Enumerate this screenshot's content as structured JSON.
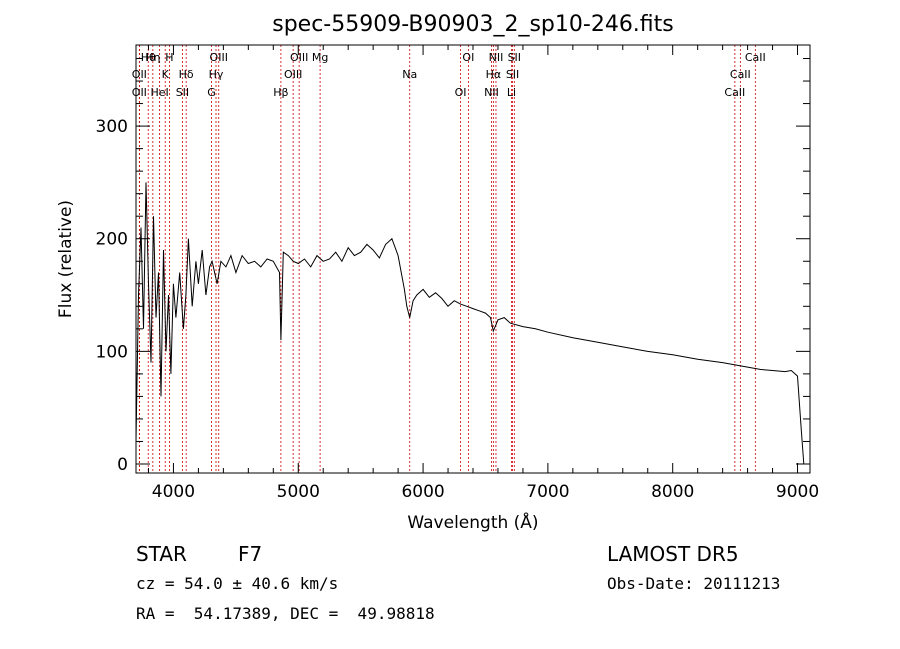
{
  "title": "spec-55909-B90903_2_sp10-246.fits",
  "info": {
    "class_label": "STAR",
    "subclass": "F7",
    "survey": "LAMOST DR5",
    "cz": "cz = 54.0 ± 40.6 km/s",
    "obs_date": "Obs-Date: 20111213",
    "radec": "RA =  54.17389, DEC =  49.98818"
  },
  "colors": {
    "spectrum": "#000000",
    "line_marker": "#cc0000",
    "frame": "#000000"
  },
  "chart_data": {
    "type": "line",
    "title": "spec-55909-B90903_2_sp10-246.fits",
    "xlabel": "Wavelength (Å)",
    "ylabel": "Flux (relative)",
    "xlim": [
      3700,
      9100
    ],
    "ylim": [
      -8,
      372
    ],
    "xticks": [
      4000,
      5000,
      6000,
      7000,
      8000,
      9000
    ],
    "yticks": [
      0,
      100,
      200,
      300
    ],
    "grid": false,
    "legend": "none",
    "series": [
      {
        "x": [
          3700,
          3720,
          3740,
          3760,
          3780,
          3800,
          3820,
          3840,
          3860,
          3880,
          3900,
          3920,
          3940,
          3960,
          3980,
          4000,
          4020,
          4050,
          4080,
          4100,
          4120,
          4150,
          4180,
          4200,
          4230,
          4260,
          4290,
          4310,
          4330,
          4350,
          4380,
          4420,
          4460,
          4500,
          4550,
          4600,
          4650,
          4700,
          4750,
          4800,
          4850,
          4861,
          4880,
          4920,
          4960,
          5000,
          5050,
          5100,
          5150,
          5200,
          5250,
          5300,
          5350,
          5400,
          5450,
          5500,
          5550,
          5600,
          5650,
          5700,
          5750,
          5800,
          5850,
          5870,
          5893,
          5920,
          5950,
          6000,
          6050,
          6100,
          6150,
          6200,
          6250,
          6300,
          6350,
          6400,
          6450,
          6500,
          6540,
          6563,
          6600,
          6650,
          6700,
          6800,
          6900,
          7000,
          7200,
          7400,
          7600,
          7800,
          8000,
          8200,
          8400,
          8500,
          8600,
          8700,
          8800,
          8900,
          8950,
          9000,
          9030,
          9050
        ],
        "y": [
          20,
          150,
          210,
          120,
          250,
          160,
          90,
          220,
          130,
          170,
          60,
          190,
          100,
          150,
          80,
          160,
          130,
          170,
          120,
          150,
          200,
          140,
          180,
          160,
          190,
          150,
          175,
          180,
          170,
          160,
          180,
          175,
          185,
          170,
          185,
          178,
          180,
          175,
          182,
          180,
          170,
          110,
          188,
          185,
          180,
          178,
          182,
          175,
          185,
          180,
          182,
          188,
          180,
          192,
          185,
          188,
          195,
          190,
          183,
          195,
          200,
          185,
          155,
          140,
          130,
          145,
          150,
          155,
          148,
          152,
          147,
          140,
          145,
          142,
          140,
          138,
          136,
          134,
          130,
          118,
          128,
          130,
          125,
          122,
          120,
          117,
          112,
          108,
          104,
          100,
          97,
          93,
          90,
          88,
          86,
          84,
          83,
          82,
          83,
          78,
          30,
          0
        ]
      }
    ],
    "spectral_lines": [
      {
        "label": "Hθ",
        "wavelength": 3798
      },
      {
        "label": "OII",
        "wavelength": 3727
      },
      {
        "label": "OII",
        "wavelength": 3727
      },
      {
        "label": "Hη",
        "wavelength": 3835
      },
      {
        "label": "K",
        "wavelength": 3934
      },
      {
        "label": "HeI",
        "wavelength": 3889
      },
      {
        "label": "H",
        "wavelength": 3968
      },
      {
        "label": "Hδ",
        "wavelength": 4102
      },
      {
        "label": "SII",
        "wavelength": 4072
      },
      {
        "label": "OIII",
        "wavelength": 4363
      },
      {
        "label": "Hγ",
        "wavelength": 4341
      },
      {
        "label": "G",
        "wavelength": 4305
      },
      {
        "label": "OIII",
        "wavelength": 5007
      },
      {
        "label": "OIII",
        "wavelength": 4959
      },
      {
        "label": "Hβ",
        "wavelength": 4861
      },
      {
        "label": "Mg",
        "wavelength": 5175
      },
      {
        "label": "Na",
        "wavelength": 5893
      },
      {
        "label": "OI",
        "wavelength": 6300
      },
      {
        "label": "OI",
        "wavelength": 6363
      },
      {
        "label": "Hα",
        "wavelength": 6563
      },
      {
        "label": "NII",
        "wavelength": 6548
      },
      {
        "label": "NII",
        "wavelength": 6584
      },
      {
        "label": "SII",
        "wavelength": 6717
      },
      {
        "label": "Li",
        "wavelength": 6708
      },
      {
        "label": "SII",
        "wavelength": 6731
      },
      {
        "label": "CaII",
        "wavelength": 8542
      },
      {
        "label": "CaII",
        "wavelength": 8498
      },
      {
        "label": "CaII",
        "wavelength": 8662
      }
    ]
  }
}
